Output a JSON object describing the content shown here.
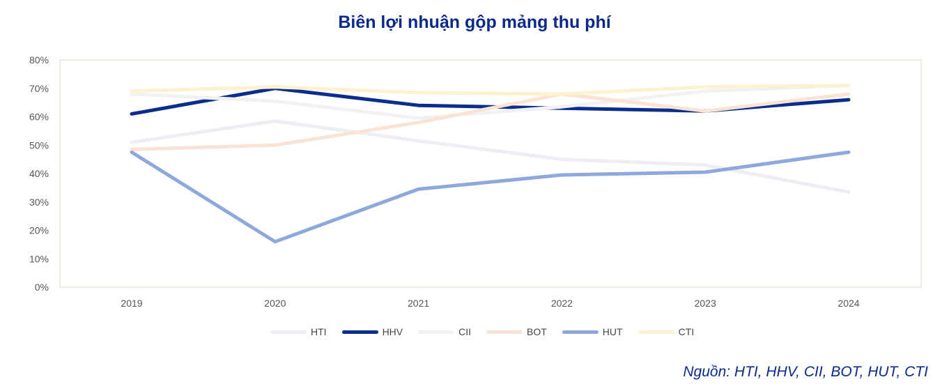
{
  "chart_data": {
    "type": "line",
    "title": "Biên lợi nhuận gộp mảng thu phí",
    "categories": [
      "2019",
      "2020",
      "2021",
      "2022",
      "2023",
      "2024"
    ],
    "yticks": [
      "0%",
      "10%",
      "20%",
      "30%",
      "40%",
      "50%",
      "60%",
      "70%",
      "80%"
    ],
    "ylim": [
      0,
      80
    ],
    "ylabel": "",
    "xlabel": "",
    "series": [
      {
        "name": "HTI",
        "color": "#eceef4",
        "values": [
          51,
          58.5,
          51.5,
          45,
          43,
          33.5
        ]
      },
      {
        "name": "HHV",
        "color": "#0b2e8e",
        "values": [
          61,
          70,
          64,
          63,
          62,
          66
        ]
      },
      {
        "name": "CII",
        "color": "#f1f1f3",
        "values": [
          68,
          65.5,
          59.5,
          63.5,
          69,
          71
        ]
      },
      {
        "name": "BOT",
        "color": "#fbe3d3",
        "values": [
          48.5,
          50,
          58,
          68,
          62,
          68
        ]
      },
      {
        "name": "HUT",
        "color": "#8ea8dc",
        "values": [
          47.5,
          16,
          34.5,
          39.5,
          40.5,
          47.5
        ]
      },
      {
        "name": "CTI",
        "color": "#fdf2cd",
        "values": [
          69,
          70.5,
          68.5,
          68,
          70.5,
          71
        ]
      }
    ],
    "legend_position": "bottom",
    "source": "Nguồn: HTI, HHV, CII, BOT, HUT, CTI"
  }
}
